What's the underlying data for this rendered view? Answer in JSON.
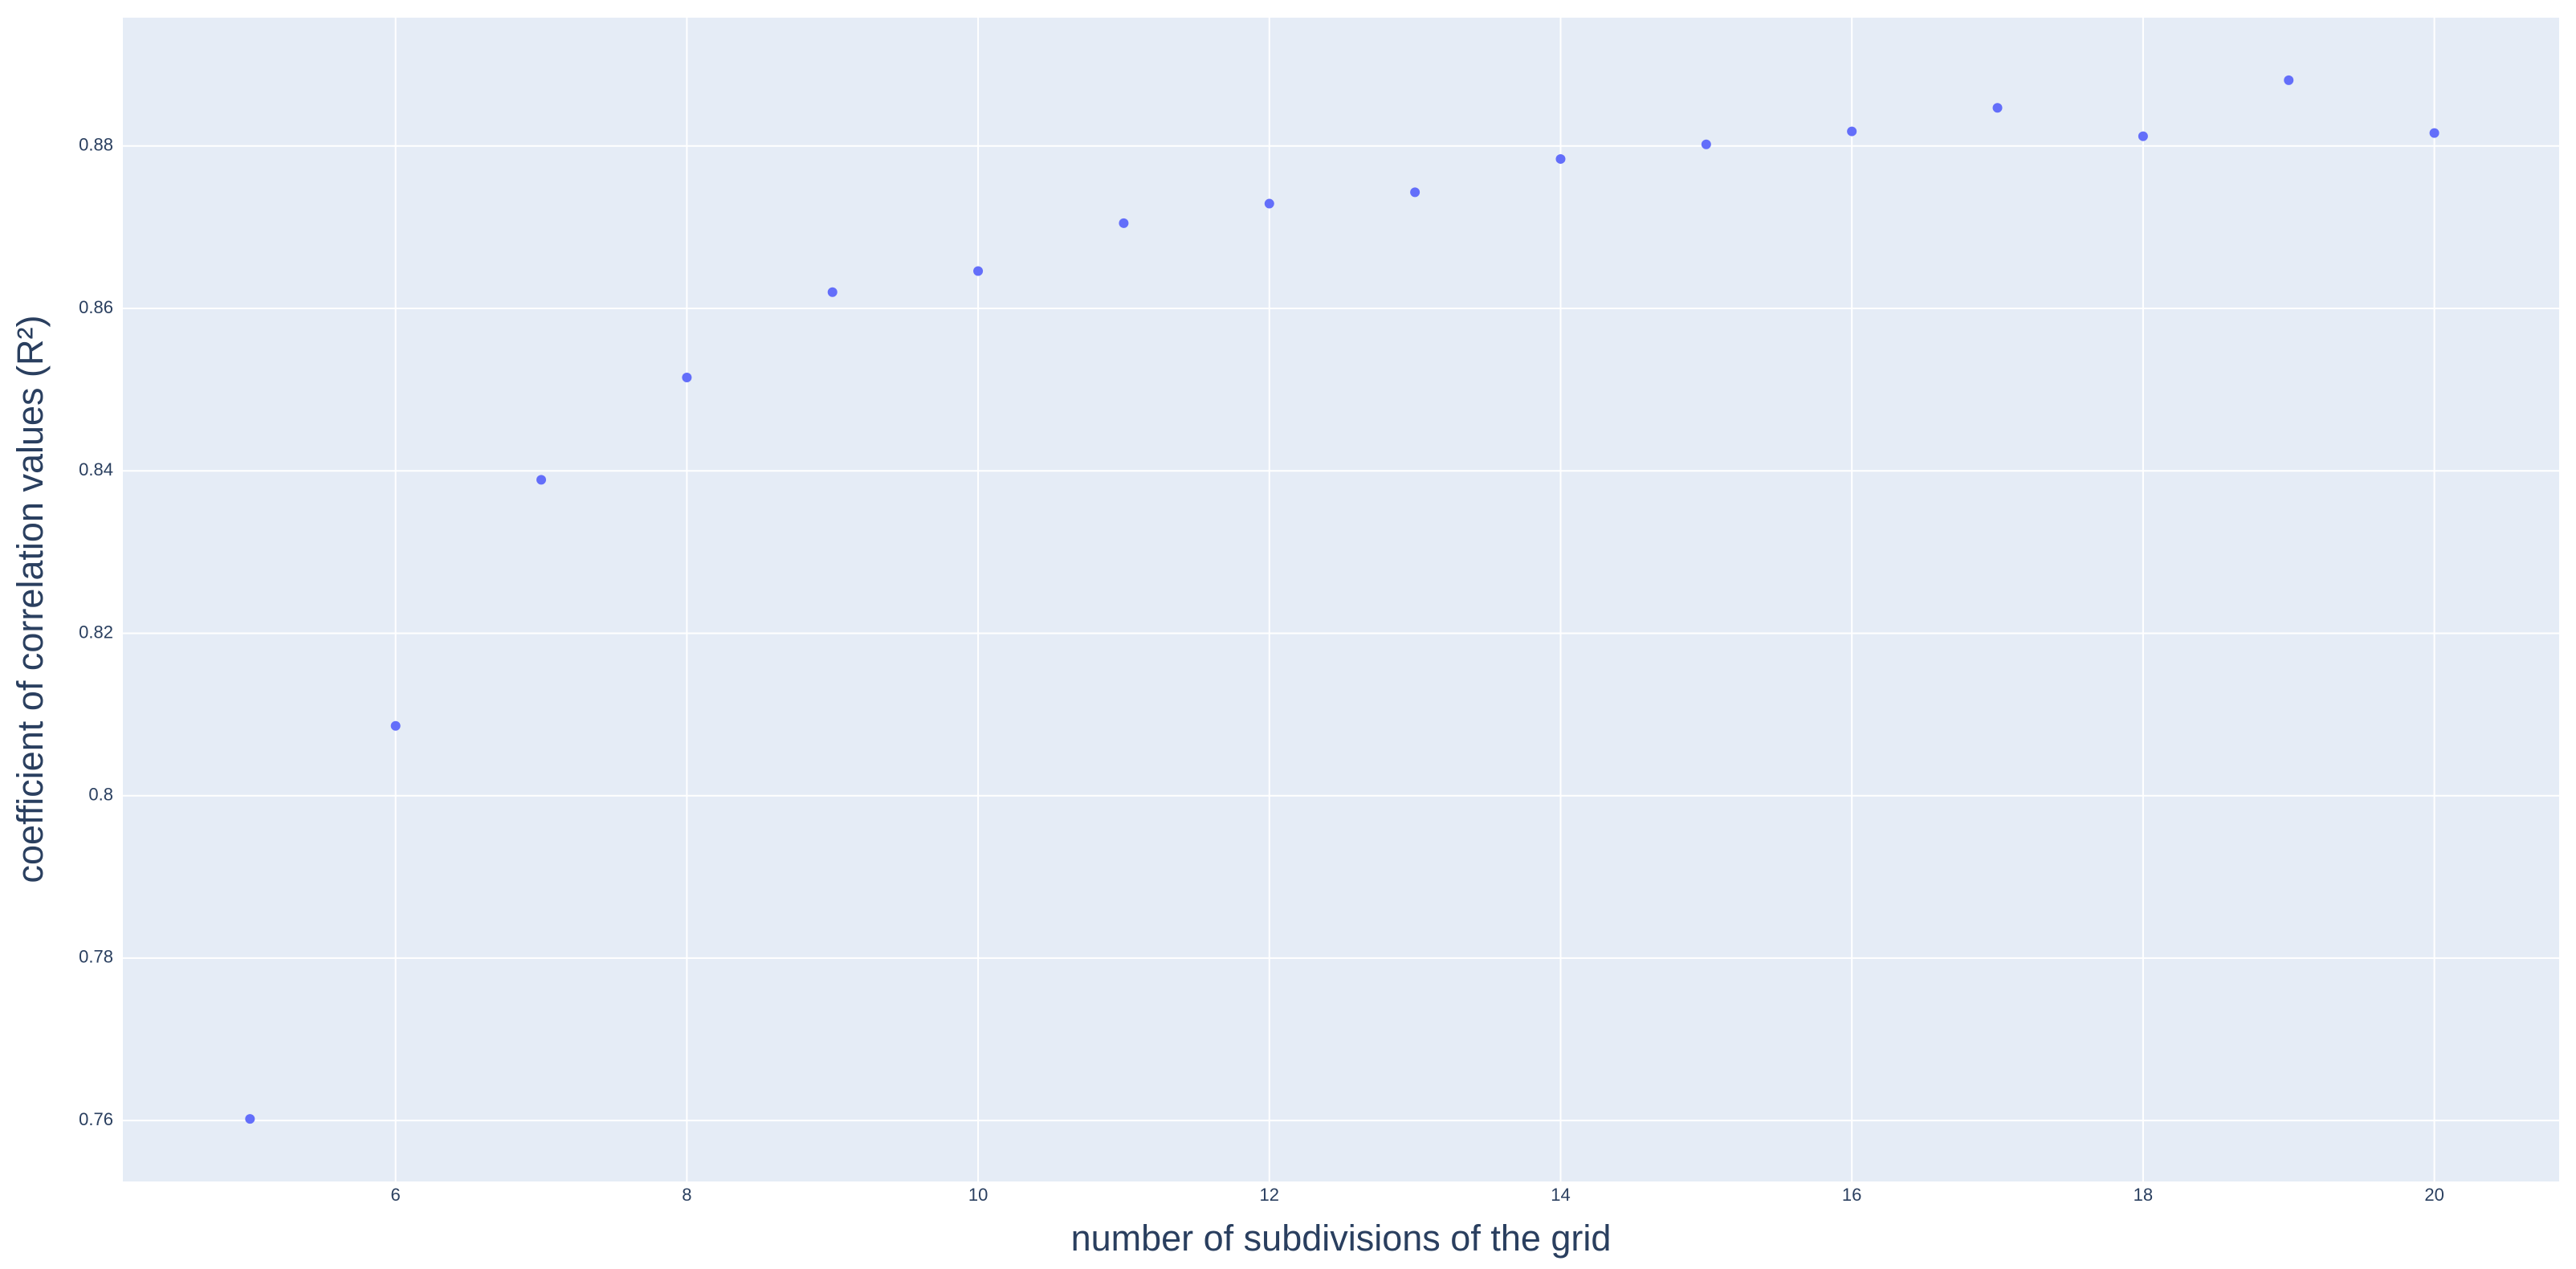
{
  "chart_data": {
    "type": "scatter",
    "x_label": "number of subdivisions of the grid",
    "y_label": "coefficient of correlation values (R²)",
    "x": [
      5,
      6,
      7,
      8,
      9,
      10,
      11,
      12,
      13,
      14,
      15,
      16,
      17,
      18,
      19,
      20
    ],
    "values": [
      0.7602,
      0.8086,
      0.8389,
      0.8515,
      0.862,
      0.8646,
      0.8705,
      0.8729,
      0.8743,
      0.8784,
      0.8802,
      0.8818,
      0.8847,
      0.8812,
      0.8881,
      0.8816
    ],
    "color": "#636efa",
    "xlim": [
      4.127,
      20.857
    ],
    "ylim": [
      0.7525,
      0.8958
    ],
    "xticks": [
      6,
      8,
      10,
      12,
      14,
      16,
      18,
      20
    ],
    "yticks": [
      0.76,
      0.78,
      0.8,
      0.82,
      0.84,
      0.86,
      0.88
    ],
    "grid": true
  }
}
